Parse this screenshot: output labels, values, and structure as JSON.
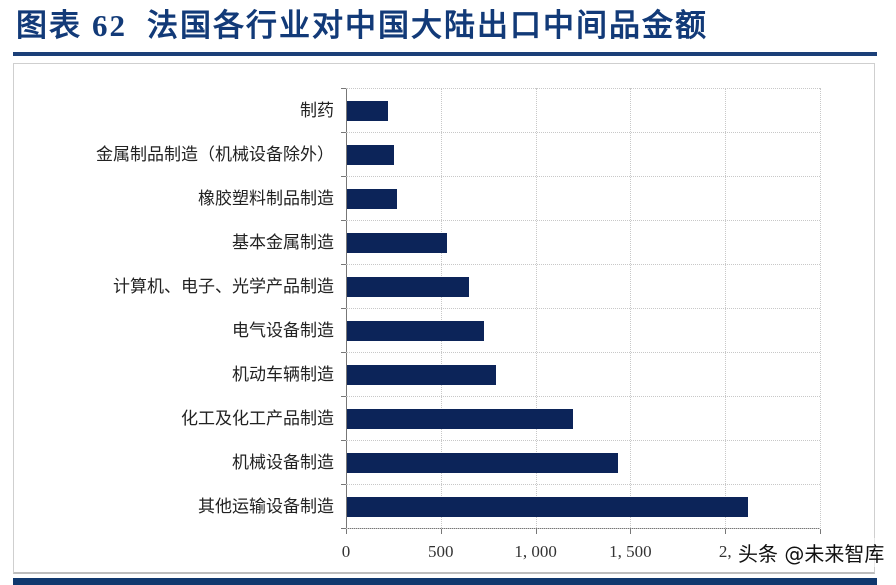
{
  "header": {
    "figure_label": "图表",
    "figure_number": "62",
    "title": "法国各行业对中国大陆出口中间品金额"
  },
  "watermark": "头条 @未来智库",
  "colors": {
    "bar": "#0c2459",
    "title": "#123a78",
    "rule": "#1b3f78"
  },
  "chart_data": {
    "type": "bar",
    "orientation": "horizontal",
    "title": "法国各行业对中国大陆出口中间品金额",
    "xlabel": "",
    "ylabel": "",
    "xlim": [
      0,
      2500
    ],
    "xticks": [
      0,
      500,
      1000,
      1500,
      2000,
      2500
    ],
    "xtick_labels": [
      "0",
      "500",
      "1, 000",
      "1, 500",
      "2,",
      ""
    ],
    "grid": true,
    "legend": null,
    "categories": [
      "制药",
      "金属制品制造（机械设备除外）",
      "橡胶塑料制品制造",
      "基本金属制造",
      "计算机、电子、光学产品制造",
      "电气设备制造",
      "机动车辆制造",
      "化工及化工产品制造",
      "机械设备制造",
      "其他运输设备制造"
    ],
    "values": [
      215,
      250,
      265,
      530,
      645,
      720,
      785,
      1190,
      1430,
      2115
    ]
  }
}
